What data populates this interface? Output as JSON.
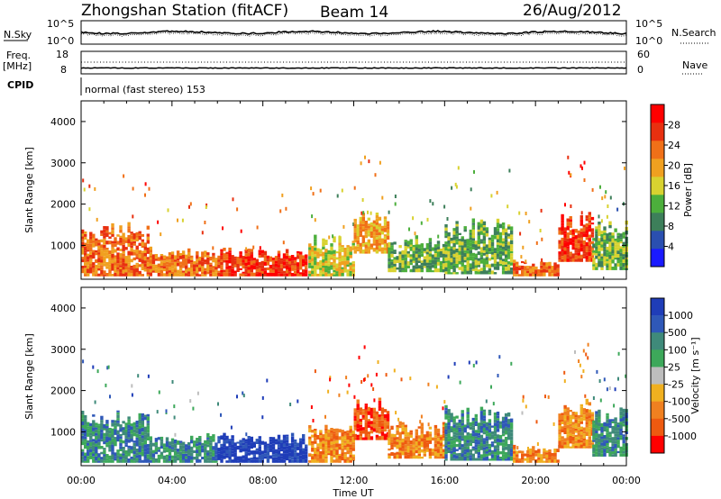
{
  "header": {
    "title": "Zhongshan Station (fitACF)",
    "beam": "Beam 14",
    "date": "26/Aug/2012"
  },
  "noise_panel": {
    "left_label": "N.Sky",
    "right_label": "N.Search",
    "left_ticks": [
      "10^5",
      "10^0"
    ],
    "right_ticks": [
      "10^5",
      "10^0"
    ]
  },
  "freq_panel": {
    "left_label_1": "Freq.",
    "left_label_2": "[MHz]",
    "right_label": "Nave",
    "left_ticks": [
      "18",
      "8"
    ],
    "right_ticks": [
      "60",
      "0"
    ]
  },
  "cpid": {
    "label": "CPID",
    "mode": "normal (fast stereo) 153"
  },
  "colors": {
    "power_scale": [
      "#1a1aff",
      "#2a4fb0",
      "#3d7f5a",
      "#4caf3c",
      "#d8d230",
      "#f0a020",
      "#f07018",
      "#e83010",
      "#ff0000"
    ],
    "velocity_scale": [
      "#1f3db8",
      "#2f58b8",
      "#3f8a7a",
      "#3da85a",
      "#bdbdbd",
      "#f0b020",
      "#f08020",
      "#ee5a10",
      "#ff0000"
    ]
  },
  "chart_data": [
    {
      "type": "heatmap",
      "title": "",
      "xlabel": "Time UT",
      "ylabel": "Slant Range [km]",
      "xlim": [
        "00:00",
        "24:00"
      ],
      "ylim": [
        180,
        4500
      ],
      "x_ticks": [
        "00:00",
        "04:00",
        "08:00",
        "12:00",
        "16:00",
        "20:00",
        "00:00"
      ],
      "y_ticks": [
        1000,
        2000,
        3000,
        4000
      ],
      "colorbar": {
        "label": "Power [dB]",
        "range": [
          0,
          32
        ],
        "ticks": [
          4,
          8,
          12,
          16,
          20,
          24,
          28
        ]
      },
      "regions": [
        {
          "t": [
            0.0,
            3.0
          ],
          "r": [
            250,
            1500
          ],
          "value": 22
        },
        {
          "t": [
            3.0,
            6.0
          ],
          "r": [
            250,
            900
          ],
          "value": 22
        },
        {
          "t": [
            6.0,
            10.0
          ],
          "r": [
            250,
            900
          ],
          "value": 26
        },
        {
          "t": [
            10.0,
            12.0
          ],
          "r": [
            250,
            1200
          ],
          "value": 16
        },
        {
          "t": [
            12.0,
            13.5
          ],
          "r": [
            800,
            1800
          ],
          "value": 20
        },
        {
          "t": [
            13.5,
            16.0
          ],
          "r": [
            350,
            1200
          ],
          "value": 14
        },
        {
          "t": [
            16.0,
            19.0
          ],
          "r": [
            300,
            1600
          ],
          "value": 12
        },
        {
          "t": [
            19.0,
            21.0
          ],
          "r": [
            250,
            600
          ],
          "value": 22
        },
        {
          "t": [
            21.0,
            22.5
          ],
          "r": [
            600,
            1800
          ],
          "value": 26
        },
        {
          "t": [
            22.5,
            24.0
          ],
          "r": [
            400,
            1600
          ],
          "value": 14
        }
      ]
    },
    {
      "type": "heatmap",
      "title": "",
      "xlabel": "Time UT",
      "ylabel": "Slant Range [km]",
      "xlim": [
        "00:00",
        "24:00"
      ],
      "ylim": [
        180,
        4500
      ],
      "x_ticks": [
        "00:00",
        "04:00",
        "08:00",
        "12:00",
        "16:00",
        "20:00",
        "00:00"
      ],
      "y_ticks": [
        1000,
        2000,
        3000,
        4000
      ],
      "colorbar": {
        "label": "Velocity [m s⁻¹]",
        "ticks": [
          "1000",
          "500",
          "100",
          "25",
          "-25",
          "-100",
          "-500",
          "-1000"
        ]
      },
      "regions": [
        {
          "t": [
            0.0,
            3.0
          ],
          "r": [
            250,
            1500
          ],
          "value": 100
        },
        {
          "t": [
            3.0,
            6.0
          ],
          "r": [
            250,
            900
          ],
          "value": 100
        },
        {
          "t": [
            6.0,
            10.0
          ],
          "r": [
            250,
            900
          ],
          "value": 500
        },
        {
          "t": [
            10.0,
            12.0
          ],
          "r": [
            250,
            1200
          ],
          "value": -100
        },
        {
          "t": [
            12.0,
            13.5
          ],
          "r": [
            800,
            1800
          ],
          "value": -500
        },
        {
          "t": [
            13.5,
            16.0
          ],
          "r": [
            350,
            1200
          ],
          "value": -100
        },
        {
          "t": [
            16.0,
            19.0
          ],
          "r": [
            300,
            1600
          ],
          "value": 100
        },
        {
          "t": [
            19.0,
            21.0
          ],
          "r": [
            250,
            600
          ],
          "value": -100
        },
        {
          "t": [
            21.0,
            22.5
          ],
          "r": [
            600,
            1800
          ],
          "value": -100
        },
        {
          "t": [
            22.5,
            24.0
          ],
          "r": [
            400,
            1600
          ],
          "value": 100
        }
      ]
    }
  ]
}
